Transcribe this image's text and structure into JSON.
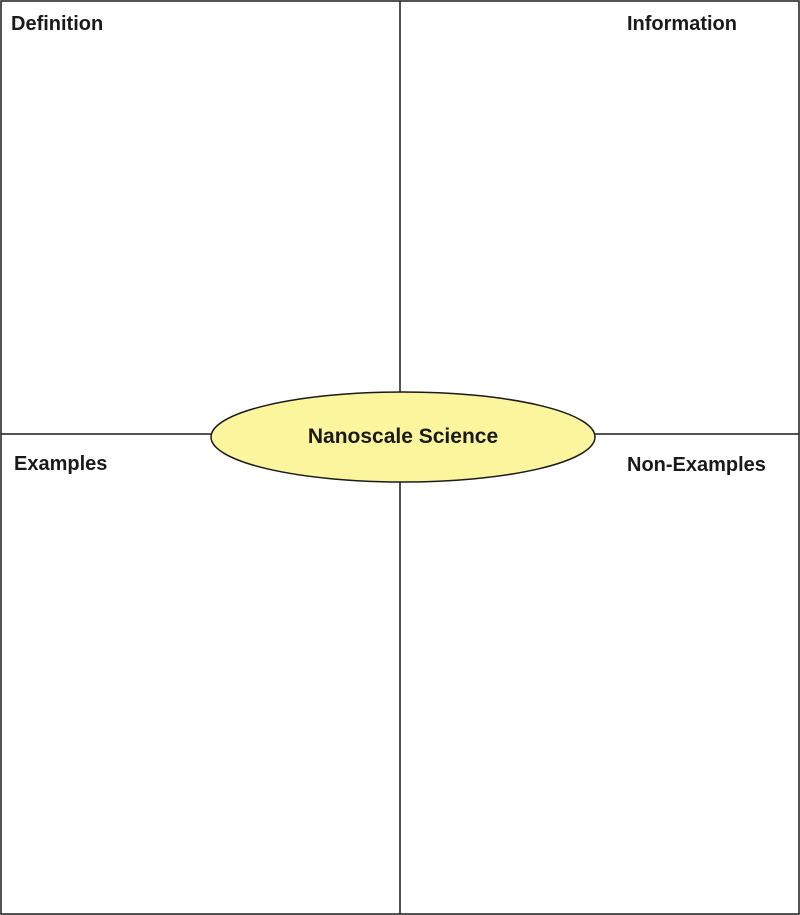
{
  "quadrants": {
    "top_left": "Definition",
    "top_right": "Information",
    "bottom_left": "Examples",
    "bottom_right": "Non-Examples"
  },
  "center": {
    "label": "Nanoscale Science",
    "fill_color": "#fbf59d"
  },
  "colors": {
    "line": "#1a1a1a",
    "background": "#ffffff"
  }
}
